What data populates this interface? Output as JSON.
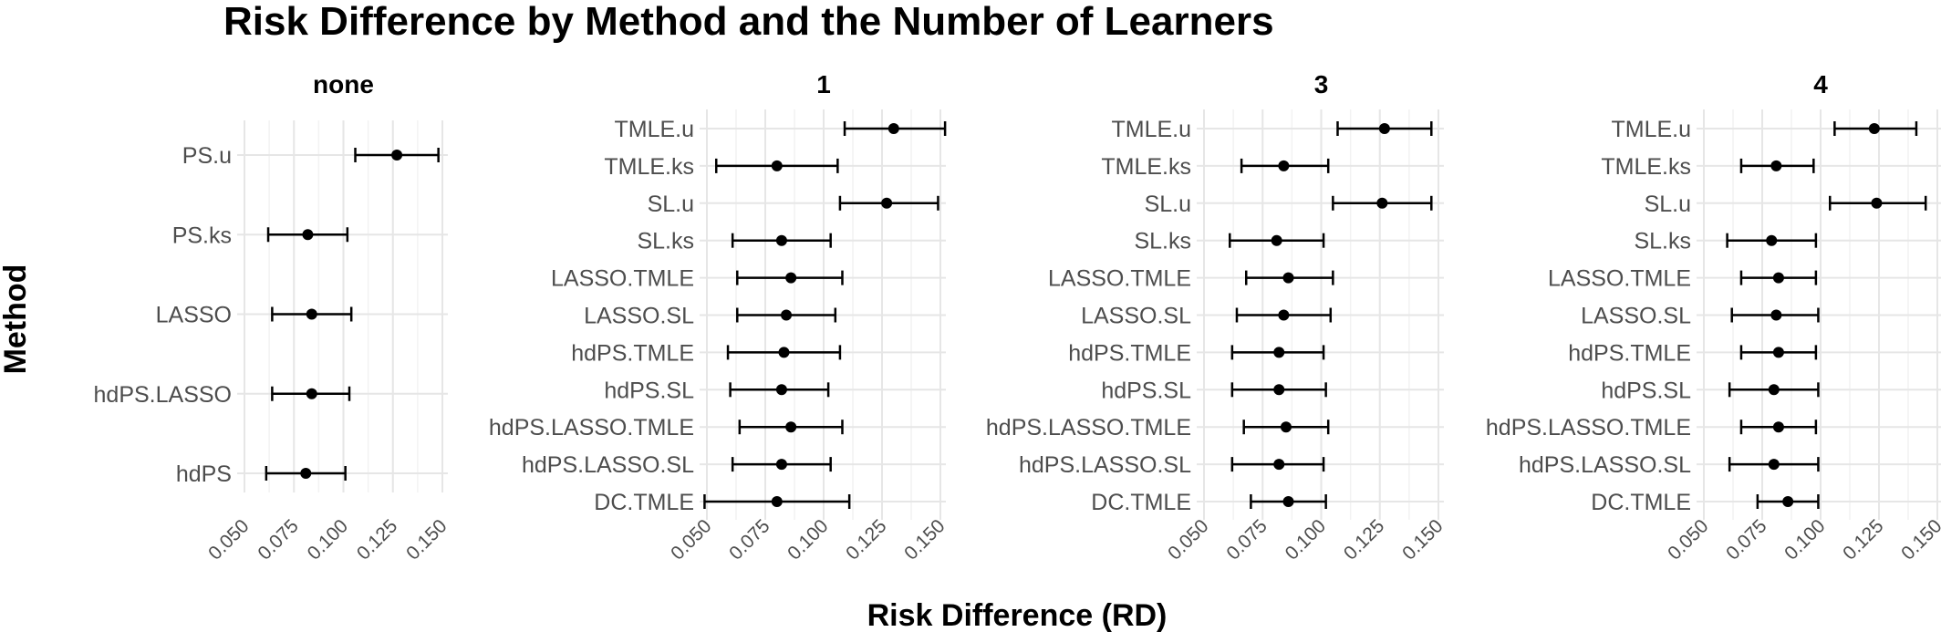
{
  "chart_data": {
    "type": "scatter",
    "title": "Risk Difference by Method and the Number of Learners",
    "xlabel": "Risk Difference (RD)",
    "ylabel": "Method",
    "xlim": [
      0.05,
      0.15
    ],
    "x_ticks": [
      "0.050",
      "0.075",
      "0.100",
      "0.125",
      "0.150"
    ],
    "x_tick_values": [
      0.05,
      0.075,
      0.1,
      0.125,
      0.15
    ],
    "grid": true,
    "error_bars": true,
    "panels": [
      {
        "name": "none",
        "categories": [
          "PS.u",
          "PS.ks",
          "LASSO",
          "hdPS.LASSO",
          "hdPS"
        ],
        "estimate": [
          0.127,
          0.082,
          0.084,
          0.084,
          0.081
        ],
        "lower": [
          0.106,
          0.062,
          0.064,
          0.064,
          0.061
        ],
        "upper": [
          0.148,
          0.102,
          0.104,
          0.103,
          0.101
        ]
      },
      {
        "name": "1",
        "categories": [
          "TMLE.u",
          "TMLE.ks",
          "SL.u",
          "SL.ks",
          "LASSO.TMLE",
          "LASSO.SL",
          "hdPS.TMLE",
          "hdPS.SL",
          "hdPS.LASSO.TMLE",
          "hdPS.LASSO.SL",
          "DC.TMLE"
        ],
        "estimate": [
          0.13,
          0.08,
          0.127,
          0.082,
          0.086,
          0.084,
          0.083,
          0.082,
          0.086,
          0.082,
          0.08
        ],
        "lower": [
          0.109,
          0.054,
          0.107,
          0.061,
          0.063,
          0.063,
          0.059,
          0.06,
          0.064,
          0.061,
          0.049
        ],
        "upper": [
          0.152,
          0.106,
          0.149,
          0.103,
          0.108,
          0.105,
          0.107,
          0.102,
          0.108,
          0.103,
          0.111
        ]
      },
      {
        "name": "3",
        "categories": [
          "TMLE.u",
          "TMLE.ks",
          "SL.u",
          "SL.ks",
          "LASSO.TMLE",
          "LASSO.SL",
          "hdPS.TMLE",
          "hdPS.SL",
          "hdPS.LASSO.TMLE",
          "hdPS.LASSO.SL",
          "DC.TMLE"
        ],
        "estimate": [
          0.127,
          0.084,
          0.126,
          0.081,
          0.086,
          0.084,
          0.082,
          0.082,
          0.085,
          0.082,
          0.086
        ],
        "lower": [
          0.107,
          0.066,
          0.105,
          0.061,
          0.068,
          0.064,
          0.062,
          0.062,
          0.067,
          0.062,
          0.07
        ],
        "upper": [
          0.147,
          0.103,
          0.147,
          0.101,
          0.105,
          0.104,
          0.101,
          0.102,
          0.103,
          0.101,
          0.102
        ]
      },
      {
        "name": "4",
        "categories": [
          "TMLE.u",
          "TMLE.ks",
          "SL.u",
          "SL.ks",
          "LASSO.TMLE",
          "LASSO.SL",
          "hdPS.TMLE",
          "hdPS.SL",
          "hdPS.LASSO.TMLE",
          "hdPS.LASSO.SL",
          "DC.TMLE"
        ],
        "estimate": [
          0.123,
          0.081,
          0.124,
          0.079,
          0.082,
          0.081,
          0.082,
          0.08,
          0.082,
          0.08,
          0.086
        ],
        "lower": [
          0.106,
          0.066,
          0.104,
          0.06,
          0.066,
          0.062,
          0.066,
          0.061,
          0.066,
          0.061,
          0.073
        ],
        "upper": [
          0.141,
          0.097,
          0.145,
          0.098,
          0.098,
          0.099,
          0.098,
          0.099,
          0.098,
          0.099,
          0.099
        ]
      }
    ]
  }
}
